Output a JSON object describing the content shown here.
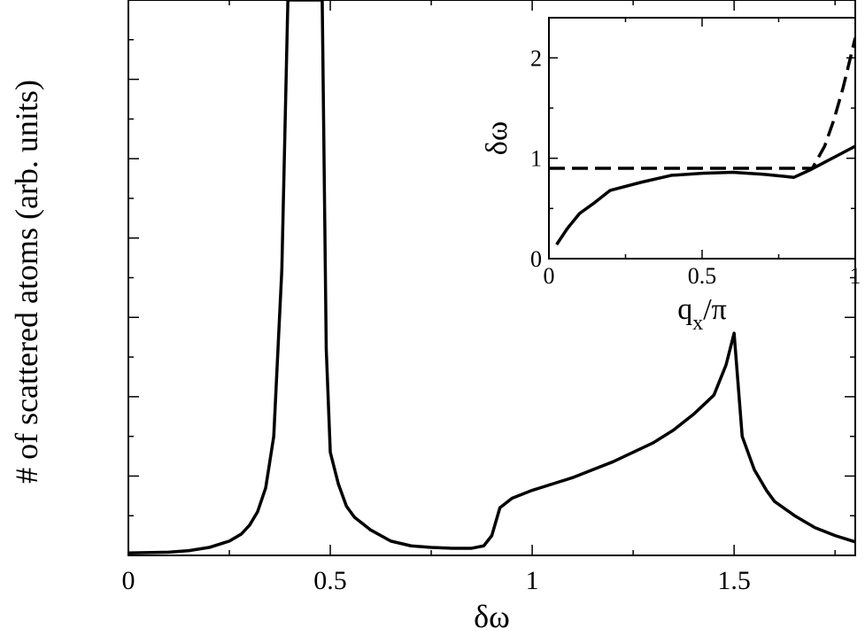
{
  "chart_data": [
    {
      "type": "line",
      "xlabel": "δω",
      "ylabel": "# of scattered atoms (arb. units)",
      "xlim": [
        0,
        1.8
      ],
      "ylim": [
        0,
        7
      ],
      "x_ticks": [
        0,
        0.5,
        1,
        1.5
      ],
      "x_tick_labels": [
        "0",
        "0.5",
        "1",
        "1.5"
      ],
      "y_ticks": [
        1,
        2,
        3,
        4,
        5,
        6
      ],
      "y_tick_labels": [],
      "grid": false,
      "series": [
        {
          "style": "solid",
          "color": "#000000",
          "x": [
            0,
            0.1,
            0.15,
            0.2,
            0.25,
            0.28,
            0.3,
            0.32,
            0.34,
            0.36,
            0.38,
            0.395,
            0.4,
            0.48,
            0.49,
            0.5,
            0.52,
            0.54,
            0.56,
            0.58,
            0.6,
            0.65,
            0.7,
            0.75,
            0.8,
            0.85,
            0.88,
            0.9,
            0.92,
            0.95,
            1.0,
            1.05,
            1.1,
            1.15,
            1.2,
            1.25,
            1.3,
            1.35,
            1.4,
            1.45,
            1.48,
            1.5,
            1.52,
            1.55,
            1.58,
            1.6,
            1.65,
            1.7,
            1.75,
            1.8
          ],
          "y": [
            0.03,
            0.04,
            0.06,
            0.1,
            0.18,
            0.27,
            0.38,
            0.55,
            0.85,
            1.5,
            3.6,
            7.1,
            7.1,
            7.1,
            2.6,
            1.3,
            0.9,
            0.62,
            0.48,
            0.4,
            0.32,
            0.18,
            0.12,
            0.1,
            0.09,
            0.09,
            0.12,
            0.25,
            0.6,
            0.72,
            0.82,
            0.9,
            0.98,
            1.08,
            1.18,
            1.3,
            1.42,
            1.58,
            1.78,
            2.02,
            2.4,
            2.8,
            1.5,
            1.08,
            0.82,
            0.68,
            0.5,
            0.35,
            0.25,
            0.17
          ]
        }
      ]
    },
    {
      "type": "line",
      "xlabel": "q",
      "xlabel_subscript": "x",
      "xlabel_suffix": "/π",
      "ylabel": "δω",
      "xlim": [
        0,
        1
      ],
      "ylim": [
        0,
        2.4
      ],
      "x_ticks": [
        0,
        0.5,
        1
      ],
      "x_tick_labels": [
        "0",
        "0.5",
        "1"
      ],
      "y_ticks": [
        0,
        1,
        2
      ],
      "y_tick_labels": [
        "0",
        "1",
        "2"
      ],
      "grid": false,
      "series": [
        {
          "style": "solid",
          "color": "#000000",
          "x": [
            0.025,
            0.06,
            0.1,
            0.15,
            0.2,
            0.3,
            0.4,
            0.5,
            0.6,
            0.7,
            0.8,
            0.85,
            0.9,
            0.95,
            1.0
          ],
          "y": [
            0.14,
            0.3,
            0.45,
            0.56,
            0.68,
            0.76,
            0.83,
            0.85,
            0.86,
            0.84,
            0.81,
            0.88,
            0.96,
            1.04,
            1.12
          ]
        },
        {
          "style": "dashed",
          "color": "#000000",
          "x": [
            0,
            0.2,
            0.4,
            0.6,
            0.8,
            0.86,
            0.9,
            0.93,
            0.96,
            0.98,
            1.0
          ],
          "y": [
            0.9,
            0.9,
            0.9,
            0.9,
            0.9,
            0.9,
            1.12,
            1.38,
            1.7,
            1.95,
            2.2
          ]
        }
      ]
    }
  ]
}
